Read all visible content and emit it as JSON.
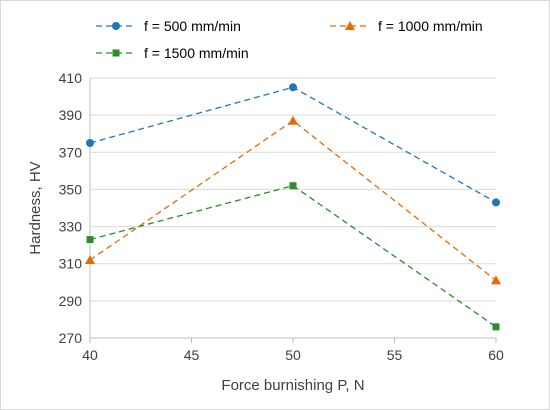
{
  "chart_data": {
    "type": "line",
    "title": "",
    "xlabel": "Force burnishing P, N",
    "ylabel": "Hardness, HV",
    "x_ticks": [
      "40",
      "45",
      "50",
      "55",
      "60"
    ],
    "y_ticks": [
      "270",
      "290",
      "310",
      "330",
      "350",
      "370",
      "390",
      "410"
    ],
    "xlim": [
      40,
      60
    ],
    "ylim": [
      270,
      410
    ],
    "grid": "horizontal",
    "legend_position": "top",
    "series": [
      {
        "name": "f = 500 mm/min",
        "marker": "circle",
        "color": "#1f77b4",
        "x": [
          40,
          50,
          60
        ],
        "y": [
          375,
          405,
          343
        ]
      },
      {
        "name": "f =  1000 mm/min",
        "marker": "triangle",
        "color": "#e36c0a",
        "x": [
          40,
          50,
          60
        ],
        "y": [
          312,
          387,
          301
        ]
      },
      {
        "name": "f = 1500 mm/min",
        "marker": "square",
        "color": "#2e8b2e",
        "x": [
          40,
          50,
          60
        ],
        "y": [
          323,
          352,
          276
        ]
      }
    ]
  }
}
